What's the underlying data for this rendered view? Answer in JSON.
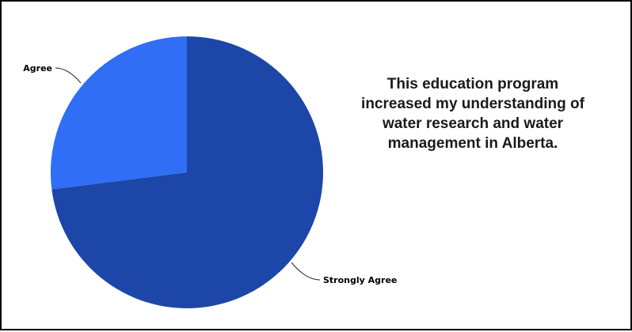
{
  "chart_data": {
    "type": "pie",
    "title_lines": [
      "This education program",
      "increased my understanding of",
      "water research and water",
      "management in Alberta."
    ],
    "slices": [
      {
        "label": "Strongly Agree",
        "value": 73,
        "color": "#1c47a8"
      },
      {
        "label": "Agree",
        "value": 27,
        "color": "#2f6ef5"
      }
    ]
  }
}
